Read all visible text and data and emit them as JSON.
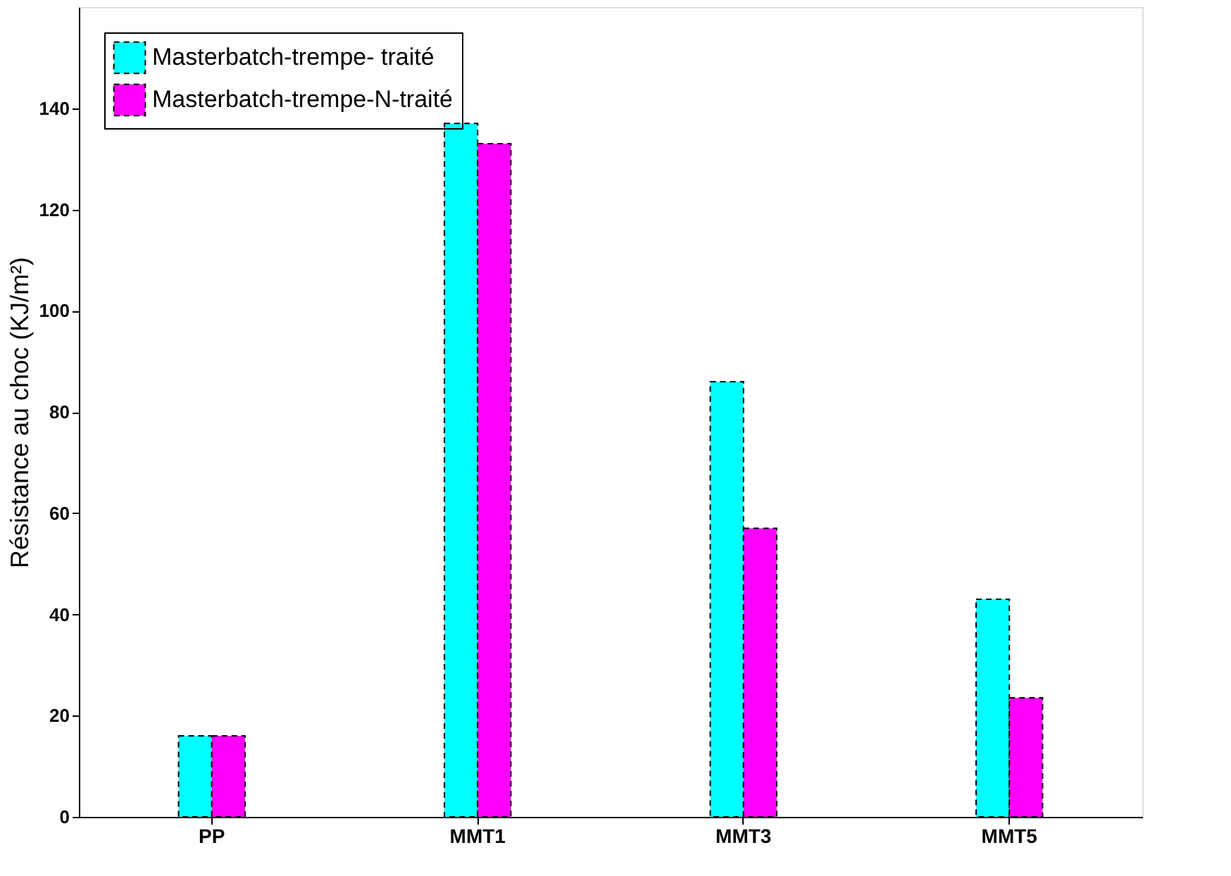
{
  "chart_data": {
    "type": "bar",
    "ylabel": "Résistance au choc (KJ/m²)",
    "categories": [
      "PP",
      "MMT1",
      "MMT3",
      "MMT5"
    ],
    "series": [
      {
        "name": "Masterbatch-trempe- traité",
        "color": "#00ffff",
        "values": [
          16,
          137,
          86,
          43
        ]
      },
      {
        "name": "Masterbatch-trempe-N-traité",
        "color": "#ff00ff",
        "values": [
          16,
          133,
          57,
          23.5
        ]
      }
    ],
    "ylim": [
      0,
      160
    ],
    "yticks": [
      0,
      20,
      40,
      60,
      80,
      100,
      120,
      140
    ],
    "grid": false,
    "legend": "top left",
    "line_style": "dashed"
  }
}
